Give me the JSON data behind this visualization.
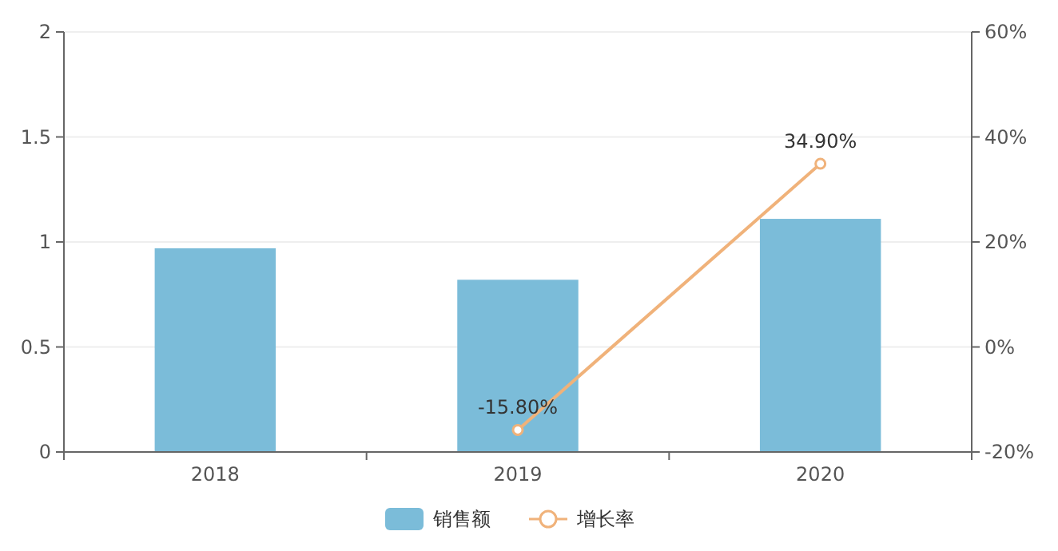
{
  "chart_data": {
    "type": "bar",
    "categories": [
      "2018",
      "2019",
      "2020"
    ],
    "series": [
      {
        "name": "销售额",
        "color": "#7bbcd9",
        "values": [
          0.97,
          0.82,
          1.11
        ]
      },
      {
        "name": "增长率",
        "type": "line",
        "axis": "y2",
        "color": "#f0b27a",
        "marker": "circle",
        "values": [
          null,
          -15.8,
          34.9
        ],
        "value_labels": [
          null,
          "-15.80%",
          "34.90%"
        ]
      }
    ],
    "ylim": [
      0,
      2
    ],
    "yticks": [
      0,
      0.5,
      1,
      1.5,
      2
    ],
    "y2lim": [
      -20,
      60
    ],
    "y2ticks": [
      {
        "value": -20,
        "label": "-20%"
      },
      {
        "value": 0,
        "label": "0%"
      },
      {
        "value": 20,
        "label": "20%"
      },
      {
        "value": 40,
        "label": "40%"
      },
      {
        "value": 60,
        "label": "60%"
      }
    ],
    "grid": "y",
    "legend": "bottom"
  }
}
